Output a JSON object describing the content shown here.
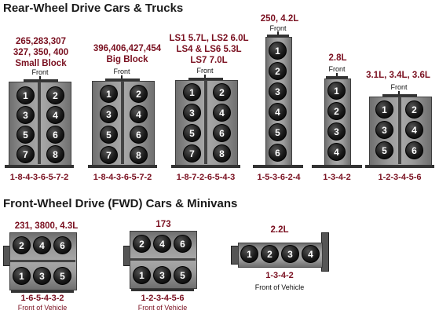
{
  "sections": {
    "rwd_title": "Rear-Wheel Drive Cars & Trucks",
    "fwd_title": "Front-Wheel Drive (FWD) Cars & Minivans"
  },
  "front_label": "Front",
  "front_of_vehicle_label": "Front of Vehicle",
  "rwd": [
    {
      "label_lines": [
        "265,283,307",
        "327, 350, 400",
        "Small Block"
      ],
      "cylinders": [
        "1",
        "2",
        "3",
        "4",
        "5",
        "6",
        "7",
        "8"
      ],
      "firing_order": "1-8-4-3-6-5-7-2"
    },
    {
      "label_lines": [
        "396,406,427,454",
        "Big Block"
      ],
      "cylinders": [
        "1",
        "2",
        "3",
        "4",
        "5",
        "6",
        "7",
        "8"
      ],
      "firing_order": "1-8-4-3-6-5-7-2"
    },
    {
      "label_lines": [
        "LS1 5.7L, LS2 6.0L",
        "LS4 & LS6 5.3L",
        "LS7 7.0L"
      ],
      "cylinders": [
        "1",
        "2",
        "3",
        "4",
        "5",
        "6",
        "7",
        "8"
      ],
      "firing_order": "1-8-7-2-6-5-4-3"
    },
    {
      "label_lines": [
        "250, 4.2L"
      ],
      "cylinders": [
        "1",
        "2",
        "3",
        "4",
        "5",
        "6"
      ],
      "firing_order": "1-5-3-6-2-4"
    },
    {
      "label_lines": [
        "2.8L"
      ],
      "cylinders": [
        "1",
        "2",
        "3",
        "4"
      ],
      "firing_order": "1-3-4-2"
    },
    {
      "label_lines": [
        "3.1L, 3.4L, 3.6L"
      ],
      "cylinders": [
        "1",
        "2",
        "3",
        "4",
        "5",
        "6"
      ],
      "firing_order": "1-2-3-4-5-6"
    }
  ],
  "fwd": [
    {
      "label": "231, 3800, 4.3L",
      "top_row": [
        "2",
        "4",
        "6"
      ],
      "bottom_row": [
        "1",
        "3",
        "5"
      ],
      "firing_order": "1-6-5-4-3-2"
    },
    {
      "label": "173",
      "top_row": [
        "2",
        "4",
        "6"
      ],
      "bottom_row": [
        "1",
        "3",
        "5"
      ],
      "firing_order": "1-2-3-4-5-6"
    },
    {
      "label": "2.2L",
      "row": [
        "1",
        "2",
        "3",
        "4"
      ],
      "firing_order": "1-3-4-2"
    }
  ]
}
